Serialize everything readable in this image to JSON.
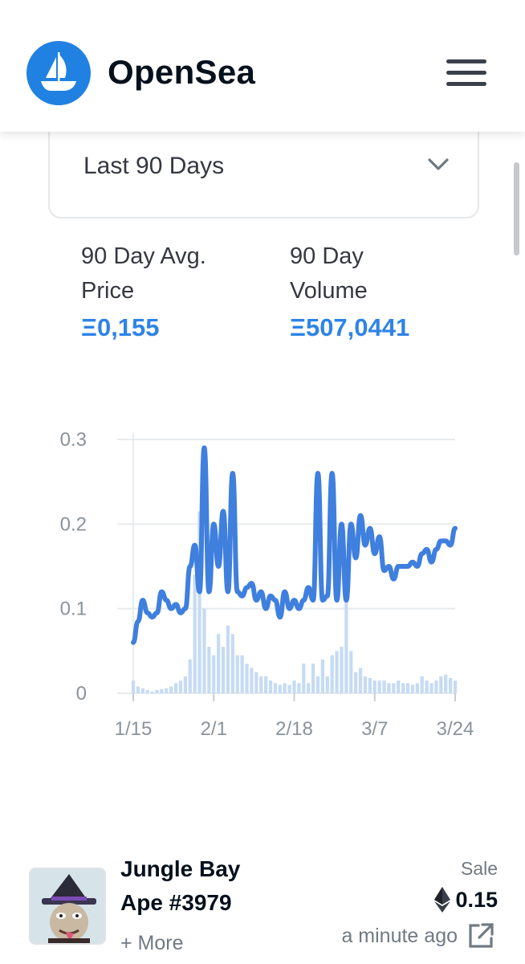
{
  "header": {
    "brand": "OpenSea",
    "logo_icon": "opensea-ship-icon",
    "menu_icon": "hamburger-menu-icon"
  },
  "filter": {
    "selected": "Last 90 Days",
    "icon": "chevron-down-icon"
  },
  "stats": [
    {
      "label_line1": "90 Day Avg.",
      "label_line2": "Price",
      "value": "Ξ0,155"
    },
    {
      "label_line1": "90 Day",
      "label_line2": "Volume",
      "value": "Ξ507,0441"
    }
  ],
  "colors": {
    "accent": "#2e83e8",
    "line": "#3f7fde",
    "bars": "#c6dbf4",
    "grid": "#e8ebee"
  },
  "chart_data": {
    "type": "line",
    "title": "",
    "xlabel": "",
    "ylabel": "",
    "ylim": [
      0,
      0.3
    ],
    "yticks": [
      "0.3",
      "0.2",
      "0.1",
      "0"
    ],
    "xtick_labels": [
      "1/15",
      "2/1",
      "2/18",
      "3/7",
      "3/24"
    ],
    "xlim": [
      0,
      68
    ],
    "xtick_positions": [
      0,
      17,
      34,
      51,
      68
    ],
    "series": [
      {
        "name": "Average price",
        "kind": "line",
        "x": [
          0,
          1,
          2,
          3,
          4,
          5,
          6,
          7,
          8,
          9,
          10,
          11,
          12,
          13,
          14,
          15,
          16,
          17,
          18,
          19,
          20,
          21,
          22,
          23,
          24,
          25,
          26,
          27,
          28,
          29,
          30,
          31,
          32,
          33,
          34,
          35,
          36,
          37,
          38,
          39,
          40,
          41,
          42,
          43,
          44,
          45,
          46,
          47,
          48,
          49,
          50,
          51,
          52,
          53,
          54,
          55,
          56,
          57,
          58,
          59,
          60,
          61,
          62,
          63,
          64,
          65,
          66,
          67,
          68
        ],
        "y": [
          0.06,
          0.085,
          0.11,
          0.095,
          0.09,
          0.095,
          0.12,
          0.11,
          0.1,
          0.105,
          0.095,
          0.1,
          0.15,
          0.175,
          0.12,
          0.29,
          0.12,
          0.2,
          0.15,
          0.215,
          0.12,
          0.26,
          0.12,
          0.115,
          0.125,
          0.13,
          0.11,
          0.12,
          0.1,
          0.115,
          0.11,
          0.09,
          0.12,
          0.1,
          0.11,
          0.1,
          0.11,
          0.125,
          0.11,
          0.26,
          0.11,
          0.115,
          0.26,
          0.11,
          0.2,
          0.11,
          0.2,
          0.16,
          0.21,
          0.175,
          0.195,
          0.165,
          0.185,
          0.145,
          0.15,
          0.135,
          0.15,
          0.15,
          0.15,
          0.155,
          0.15,
          0.165,
          0.17,
          0.155,
          0.17,
          0.18,
          0.18,
          0.175,
          0.195
        ]
      },
      {
        "name": "Volume",
        "kind": "bar",
        "x": [
          0,
          1,
          2,
          3,
          4,
          5,
          6,
          7,
          8,
          9,
          10,
          11,
          12,
          13,
          14,
          15,
          16,
          17,
          18,
          19,
          20,
          21,
          22,
          23,
          24,
          25,
          26,
          27,
          28,
          29,
          30,
          31,
          32,
          33,
          34,
          35,
          36,
          37,
          38,
          39,
          40,
          41,
          42,
          43,
          44,
          45,
          46,
          47,
          48,
          49,
          50,
          51,
          52,
          53,
          54,
          55,
          56,
          57,
          58,
          59,
          60,
          61,
          62,
          63,
          64,
          65,
          66,
          67,
          68
        ],
        "y": [
          0.015,
          0.008,
          0.006,
          0.004,
          0.002,
          0.004,
          0.005,
          0.006,
          0.008,
          0.012,
          0.015,
          0.02,
          0.04,
          0.14,
          0.215,
          0.1,
          0.055,
          0.045,
          0.07,
          0.055,
          0.08,
          0.07,
          0.045,
          0.045,
          0.035,
          0.03,
          0.025,
          0.02,
          0.02,
          0.015,
          0.012,
          0.01,
          0.012,
          0.01,
          0.015,
          0.012,
          0.035,
          0.012,
          0.035,
          0.02,
          0.04,
          0.02,
          0.045,
          0.05,
          0.055,
          0.15,
          0.05,
          0.025,
          0.03,
          0.02,
          0.018,
          0.015,
          0.015,
          0.015,
          0.012,
          0.012,
          0.015,
          0.012,
          0.012,
          0.01,
          0.012,
          0.02,
          0.015,
          0.012,
          0.015,
          0.02,
          0.022,
          0.018,
          0.015
        ]
      }
    ]
  },
  "activity": {
    "item_name_line1": "Jungle Bay",
    "item_name_line2": "Ape #3979",
    "more_link": "+ More",
    "event_type": "Sale",
    "price": "0.15",
    "price_icon": "ethereum-icon",
    "time": "a minute ago",
    "link_icon": "external-link-icon"
  }
}
